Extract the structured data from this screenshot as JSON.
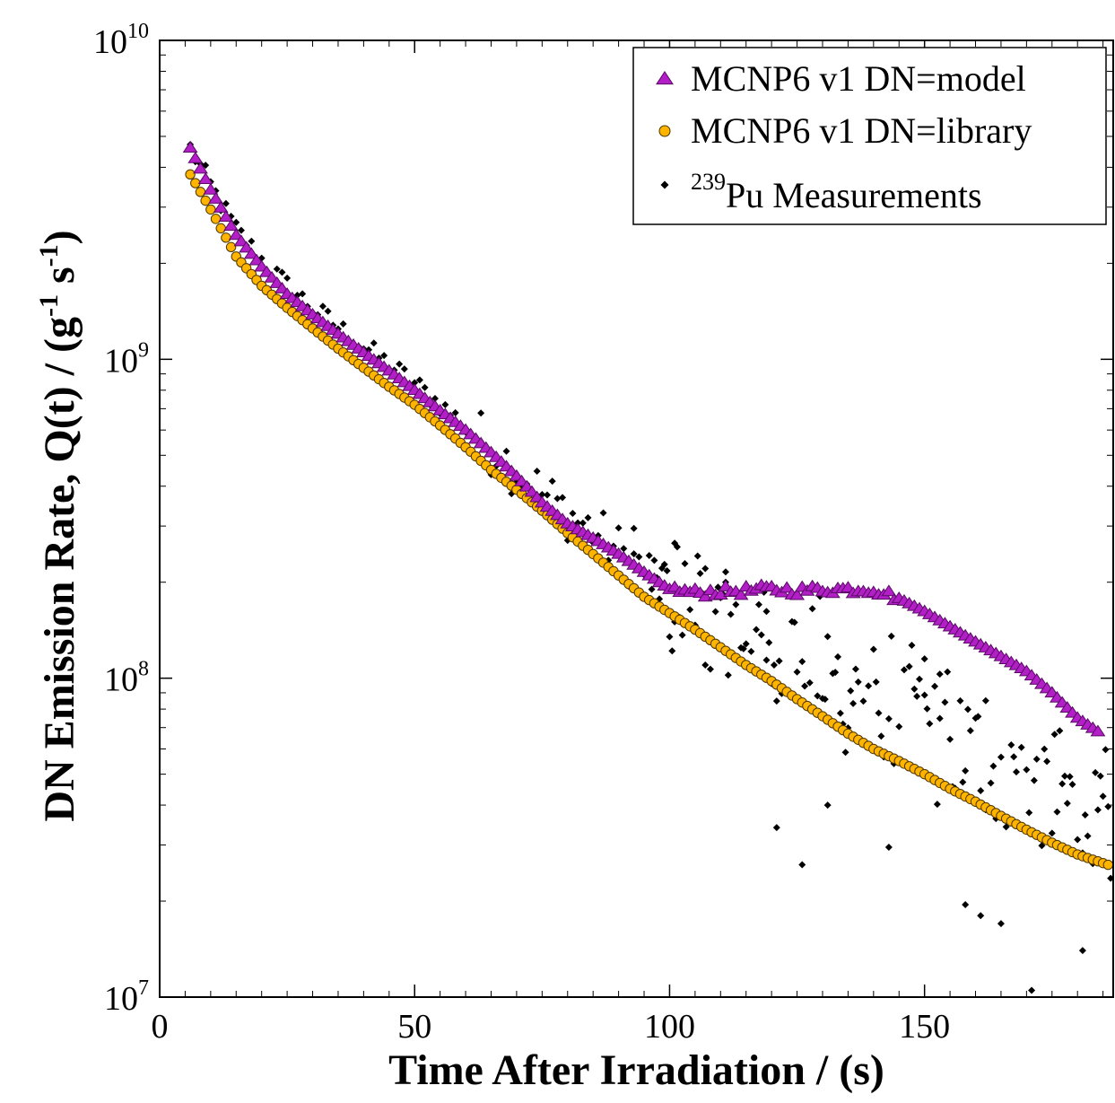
{
  "chart_data": {
    "type": "scatter",
    "title": "",
    "xlabel": "Time After Irradiation / (s)",
    "ylabel": {
      "prefix": "DN Emission Rate, Q(t) / (g",
      "sup1": "-1",
      "mid": " s",
      "sup2": "-1",
      "suffix": ")"
    },
    "xlim": [
      0,
      187
    ],
    "ylim": [
      10000000,
      10000000000
    ],
    "yscale": "log",
    "xticks": [
      0,
      50,
      100,
      150
    ],
    "xtick_labels": [
      "0",
      "50",
      "100",
      "150"
    ],
    "yticks": [
      10000000,
      100000000,
      1000000000,
      10000000000
    ],
    "ytick_labels": [
      {
        "base": "10",
        "exp": "7"
      },
      {
        "base": "10",
        "exp": "8"
      },
      {
        "base": "10",
        "exp": "9"
      },
      {
        "base": "10",
        "exp": "10"
      }
    ],
    "grid": false,
    "legend_position": "top-right",
    "series": [
      {
        "name": "MCNP6 v1 DN=model",
        "marker": "triangle",
        "color": "#b21fc6",
        "edge_color": "#5a0a66",
        "model": "curve",
        "points": [
          [
            6,
            4600000000.0
          ],
          [
            10,
            3400000000.0
          ],
          [
            15,
            2450000000.0
          ],
          [
            20,
            1950000000.0
          ],
          [
            25,
            1600000000.0
          ],
          [
            30,
            1380000000.0
          ],
          [
            35,
            1200000000.0
          ],
          [
            40,
            1050000000.0
          ],
          [
            45,
            920000000.0
          ],
          [
            50,
            800000000.0
          ],
          [
            55,
            690000000.0
          ],
          [
            60,
            600000000.0
          ],
          [
            65,
            510000000.0
          ],
          [
            70,
            430000000.0
          ],
          [
            75,
            355000000.0
          ],
          [
            80,
            305000000.0
          ],
          [
            85,
            275000000.0
          ],
          [
            90,
            245000000.0
          ],
          [
            95,
            215000000.0
          ],
          [
            100,
            190000000.0
          ],
          [
            105,
            185000000.0
          ],
          [
            110,
            187000000.0
          ],
          [
            115,
            188000000.0
          ],
          [
            120,
            190000000.0
          ],
          [
            125,
            188000000.0
          ],
          [
            130,
            190000000.0
          ],
          [
            135,
            190000000.0
          ],
          [
            140,
            190000000.0
          ],
          [
            145,
            178000000.0
          ],
          [
            150,
            162000000.0
          ],
          [
            155,
            145000000.0
          ],
          [
            160,
            130000000.0
          ],
          [
            165,
            117000000.0
          ],
          [
            170,
            105000000.0
          ],
          [
            175,
            90000000.0
          ],
          [
            180,
            75000000.0
          ],
          [
            184,
            68000000.0
          ]
        ]
      },
      {
        "name": "MCNP6 v1 DN=library",
        "marker": "circle",
        "color": "#ffb400",
        "edge_color": "#4d3600",
        "model": "curve",
        "points": [
          [
            6,
            3800000000.0
          ],
          [
            10,
            2950000000.0
          ],
          [
            15,
            2100000000.0
          ],
          [
            20,
            1700000000.0
          ],
          [
            25,
            1450000000.0
          ],
          [
            30,
            1250000000.0
          ],
          [
            35,
            1080000000.0
          ],
          [
            40,
            940000000.0
          ],
          [
            45,
            820000000.0
          ],
          [
            50,
            720000000.0
          ],
          [
            55,
            620000000.0
          ],
          [
            60,
            530000000.0
          ],
          [
            65,
            450000000.0
          ],
          [
            70,
            390000000.0
          ],
          [
            75,
            335000000.0
          ],
          [
            80,
            285000000.0
          ],
          [
            85,
            245000000.0
          ],
          [
            90,
            210000000.0
          ],
          [
            95,
            180000000.0
          ],
          [
            100,
            160000000.0
          ],
          [
            105,
            142000000.0
          ],
          [
            110,
            125000000.0
          ],
          [
            115,
            110000000.0
          ],
          [
            120,
            98000000.0
          ],
          [
            125,
            86000000.0
          ],
          [
            130,
            76000000.0
          ],
          [
            135,
            67000000.0
          ],
          [
            140,
            60000000.0
          ],
          [
            145,
            55000000.0
          ],
          [
            150,
            50000000.0
          ],
          [
            155,
            45000000.0
          ],
          [
            160,
            41000000.0
          ],
          [
            165,
            37000000.0
          ],
          [
            170,
            33500000.0
          ],
          [
            175,
            30500000.0
          ],
          [
            180,
            28000000.0
          ],
          [
            186,
            26000000.0
          ]
        ]
      },
      {
        "name": "Pu Measurements",
        "name_sup": "239",
        "marker": "diamond",
        "color": "#000000",
        "model": "scattered",
        "trend": [
          [
            6,
            4600000000.0
          ],
          [
            10,
            3500000000.0
          ],
          [
            15,
            2550000000.0
          ],
          [
            20,
            2050000000.0
          ],
          [
            25,
            1700000000.0
          ],
          [
            30,
            1450000000.0
          ],
          [
            35,
            1260000000.0
          ],
          [
            40,
            1100000000.0
          ],
          [
            45,
            960000000.0
          ],
          [
            50,
            840000000.0
          ],
          [
            55,
            720000000.0
          ],
          [
            60,
            620000000.0
          ],
          [
            65,
            530000000.0
          ],
          [
            70,
            450000000.0
          ],
          [
            75,
            380000000.0
          ],
          [
            80,
            330000000.0
          ],
          [
            85,
            290000000.0
          ],
          [
            90,
            250000000.0
          ],
          [
            95,
            220000000.0
          ],
          [
            100,
            190000000.0
          ],
          [
            105,
            170000000.0
          ],
          [
            110,
            155000000.0
          ],
          [
            115,
            142000000.0
          ],
          [
            120,
            130000000.0
          ],
          [
            125,
            118000000.0
          ],
          [
            130,
            106000000.0
          ],
          [
            135,
            95000000.0
          ],
          [
            140,
            86000000.0
          ],
          [
            145,
            78000000.0
          ],
          [
            150,
            70000000.0
          ],
          [
            155,
            63000000.0
          ],
          [
            160,
            57000000.0
          ],
          [
            165,
            51000000.0
          ],
          [
            170,
            46000000.0
          ],
          [
            175,
            42000000.0
          ],
          [
            180,
            38000000.0
          ],
          [
            186,
            35000000.0
          ]
        ],
        "outliers": [
          [
            121,
            34000000.0
          ],
          [
            126,
            26000000.0
          ],
          [
            131,
            40000000.0
          ],
          [
            143,
            29500000.0
          ],
          [
            158,
            19500000.0
          ],
          [
            161,
            18000000.0
          ],
          [
            165,
            17000000.0
          ],
          [
            171,
            10500000.0
          ],
          [
            181,
            14000000.0
          ],
          [
            162,
            85000000.0
          ],
          [
            153,
            103000000.0
          ],
          [
            150,
            115000000.0
          ],
          [
            107,
            110000000.0
          ],
          [
            119,
            162000000.0
          ],
          [
            111,
            200000000.0
          ],
          [
            93,
            295000000.0
          ],
          [
            101,
            265000000.0
          ]
        ]
      }
    ]
  }
}
